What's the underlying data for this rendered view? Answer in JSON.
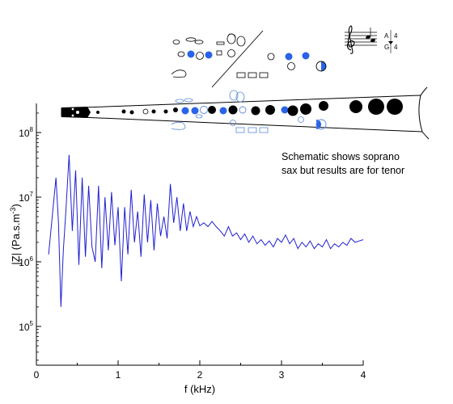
{
  "chart_data": {
    "type": "line",
    "xlabel": "f (kHz)",
    "ylabel": "|Z| (Pa.s.m",
    "ylabel_sup": "-3",
    "ylabel_close": ")",
    "xlim": [
      0,
      4
    ],
    "ylim_log10": [
      4.4,
      8.45
    ],
    "y_scale": "log",
    "x_ticks": [
      0,
      1,
      2,
      3,
      4
    ],
    "x_tick_labels": [
      "0",
      "1",
      "2",
      "3",
      "4"
    ],
    "y_ticks_log10": [
      5,
      6,
      7,
      8
    ],
    "y_tick_labels": [
      {
        "base": "10",
        "exp": "5"
      },
      {
        "base": "10",
        "exp": "6"
      },
      {
        "base": "10",
        "exp": "7"
      },
      {
        "base": "10",
        "exp": "8"
      }
    ],
    "series_color": "#2020d0",
    "series": [
      {
        "x": [
          0.15,
          0.2,
          0.24,
          0.27,
          0.3,
          0.33,
          0.36,
          0.4,
          0.44,
          0.48,
          0.52,
          0.56,
          0.6,
          0.64,
          0.68,
          0.72,
          0.76,
          0.8,
          0.84,
          0.88,
          0.92,
          0.96,
          1.0,
          1.04,
          1.08,
          1.12,
          1.16,
          1.2,
          1.24,
          1.28,
          1.32,
          1.36,
          1.4,
          1.44,
          1.48,
          1.52,
          1.56,
          1.6,
          1.64,
          1.68,
          1.72,
          1.76,
          1.8,
          1.84,
          1.88,
          1.92,
          1.96,
          2.0,
          2.05,
          2.1,
          2.15,
          2.2,
          2.25,
          2.3,
          2.35,
          2.4,
          2.45,
          2.5,
          2.55,
          2.6,
          2.65,
          2.7,
          2.75,
          2.8,
          2.85,
          2.9,
          2.95,
          3.0,
          3.05,
          3.1,
          3.15,
          3.2,
          3.25,
          3.3,
          3.35,
          3.4,
          3.45,
          3.5,
          3.55,
          3.6,
          3.65,
          3.7,
          3.75,
          3.8,
          3.85,
          3.9,
          3.95,
          4.0
        ],
        "y": [
          1300000,
          6000000,
          20000000,
          4000000,
          200000,
          1500000,
          6000000,
          45000000,
          3000000,
          26000000,
          900000,
          20000000,
          1200000,
          15000000,
          1700000,
          1000000,
          15000000,
          800000,
          10000000,
          1500000,
          12000000,
          1800000,
          7000000,
          500000,
          7000000,
          1300000,
          13000000,
          2000000,
          6000000,
          1200000,
          11000000,
          2000000,
          9000000,
          1500000,
          8000000,
          2500000,
          5000000,
          2300000,
          16000000,
          4000000,
          10000000,
          3000000,
          8000000,
          3000000,
          6000000,
          3500000,
          5000000,
          3600000,
          4000000,
          3500000,
          4200000,
          3500000,
          3000000,
          2500000,
          3500000,
          2500000,
          2800000,
          2200000,
          2700000,
          2000000,
          2500000,
          1900000,
          2200000,
          1800000,
          2100000,
          1700000,
          2300000,
          2000000,
          2600000,
          1900000,
          2300000,
          1600000,
          2000000,
          1700000,
          2100000,
          1600000,
          1900000,
          1700000,
          2200000,
          1600000,
          1900000,
          1700000,
          2000000,
          1800000,
          2300000,
          2000000,
          2100000,
          2200000
        ]
      }
    ]
  },
  "annotation": {
    "line1": "Schematic shows soprano",
    "line2": "sax but results are for tenor"
  },
  "notes": {
    "upper": "A",
    "upper_oct": "4",
    "lower": "G",
    "lower_oct": "4"
  },
  "colors": {
    "key_closed": "#000000",
    "key_blue": "#2a63e8",
    "key_open_blue": "#5a8ad8"
  }
}
